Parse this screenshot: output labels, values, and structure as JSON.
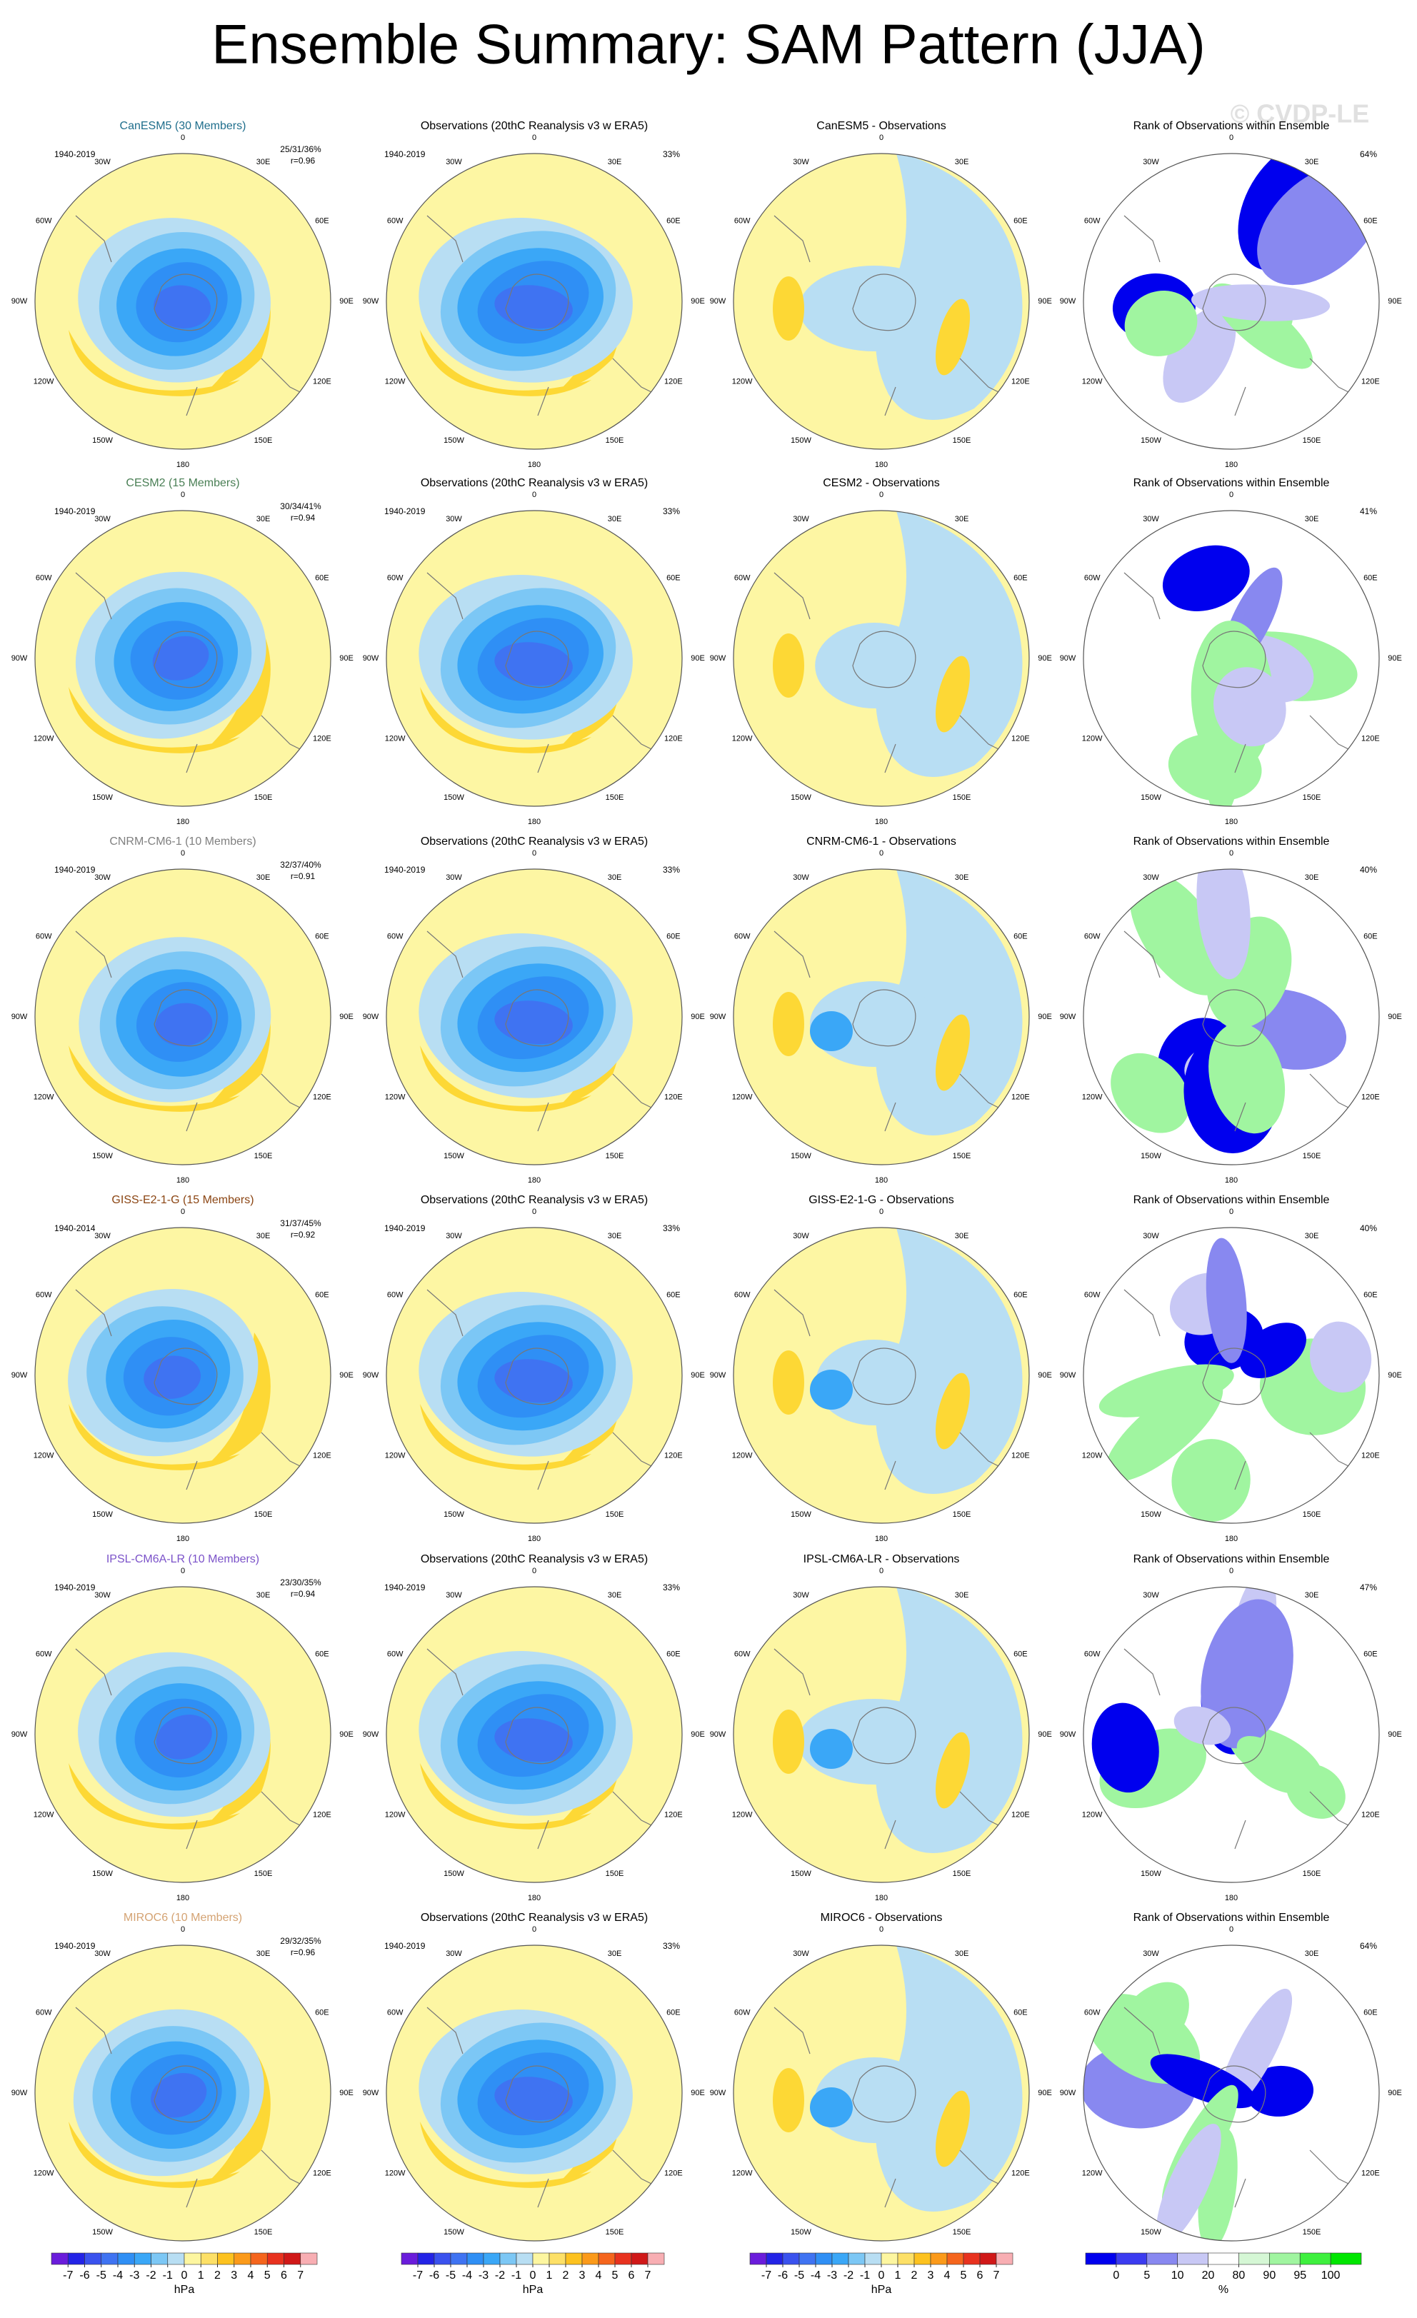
{
  "title": "Ensemble Summary: SAM Pattern (JJA)",
  "watermark": "© CVDP-LE",
  "longitudes": [
    "0",
    "30E",
    "60E",
    "90E",
    "120E",
    "150E",
    "180",
    "150W",
    "120W",
    "90W",
    "60W",
    "30W"
  ],
  "panels": [
    {
      "model": {
        "title": "CanESM5 (30 Members)",
        "color": "#1f6e8c",
        "period": "1940-2019",
        "stats": "25/31/36%",
        "r": "r=0.96"
      },
      "observations": {
        "title": "Observations (20thC Reanalysis v3 w ERA5)",
        "period": "1940-2019",
        "pct": "33%"
      },
      "difference": {
        "title": "CanESM5 - Observations"
      },
      "rank": {
        "title": "Rank of Observations within Ensemble",
        "pct": "64%"
      }
    },
    {
      "model": {
        "title": "CESM2 (15 Members)",
        "color": "#4a7f55",
        "period": "1940-2019",
        "stats": "30/34/41%",
        "r": "r=0.94"
      },
      "observations": {
        "title": "Observations (20thC Reanalysis v3 w ERA5)",
        "period": "1940-2019",
        "pct": "33%"
      },
      "difference": {
        "title": "CESM2 - Observations"
      },
      "rank": {
        "title": "Rank of Observations within Ensemble",
        "pct": "41%"
      }
    },
    {
      "model": {
        "title": "CNRM-CM6-1 (10 Members)",
        "color": "#808080",
        "period": "1940-2019",
        "stats": "32/37/40%",
        "r": "r=0.91"
      },
      "observations": {
        "title": "Observations (20thC Reanalysis v3 w ERA5)",
        "period": "1940-2019",
        "pct": "33%"
      },
      "difference": {
        "title": "CNRM-CM6-1 - Observations"
      },
      "rank": {
        "title": "Rank of Observations within Ensemble",
        "pct": "40%"
      }
    },
    {
      "model": {
        "title": "GISS-E2-1-G (15 Members)",
        "color": "#8b4513",
        "period": "1940-2014",
        "stats": "31/37/45%",
        "r": "r=0.92"
      },
      "observations": {
        "title": "Observations (20thC Reanalysis v3 w ERA5)",
        "period": "1940-2019",
        "pct": "33%"
      },
      "difference": {
        "title": "GISS-E2-1-G - Observations"
      },
      "rank": {
        "title": "Rank of Observations within Ensemble",
        "pct": "40%"
      }
    },
    {
      "model": {
        "title": "IPSL-CM6A-LR (10 Members)",
        "color": "#7b52c9",
        "period": "1940-2019",
        "stats": "23/30/35%",
        "r": "r=0.94"
      },
      "observations": {
        "title": "Observations (20thC Reanalysis v3 w ERA5)",
        "period": "1940-2019",
        "pct": "33%"
      },
      "difference": {
        "title": "IPSL-CM6A-LR - Observations"
      },
      "rank": {
        "title": "Rank of Observations within Ensemble",
        "pct": "47%"
      }
    },
    {
      "model": {
        "title": "MIROC6 (10 Members)",
        "color": "#d4a373",
        "period": "1940-2019",
        "stats": "29/32/35%",
        "r": "r=0.96"
      },
      "observations": {
        "title": "Observations (20thC Reanalysis v3 w ERA5)",
        "period": "1940-2019",
        "pct": "33%"
      },
      "difference": {
        "title": "MIROC6 - Observations"
      },
      "rank": {
        "title": "Rank of Observations within Ensemble",
        "pct": "64%"
      }
    }
  ],
  "pressure_colorbar": {
    "ticks": [
      -7,
      -6,
      -5,
      -4,
      -3,
      -2,
      -1,
      0,
      1,
      2,
      3,
      4,
      5,
      6,
      7
    ],
    "units": "hPa",
    "colors": [
      "#6a1cdb",
      "#2323e6",
      "#3a52ee",
      "#3f73f2",
      "#2f8ff5",
      "#3aa7f7",
      "#7cc7f5",
      "#b8def3",
      "#fdf6a0",
      "#fde067",
      "#fdc21f",
      "#fb9a1a",
      "#f5651d",
      "#e8321f",
      "#d01818",
      "#f8aeb3"
    ]
  },
  "rank_colorbar": {
    "ticks": [
      0,
      5,
      10,
      20,
      80,
      90,
      95,
      100
    ],
    "units": "%",
    "colors": [
      "#0000ee",
      "#3b3bf0",
      "#8888f0",
      "#c8c8f5",
      "#ffffff",
      "#d5f7d5",
      "#a0f5a0",
      "#3ef03e",
      "#00e600"
    ]
  }
}
